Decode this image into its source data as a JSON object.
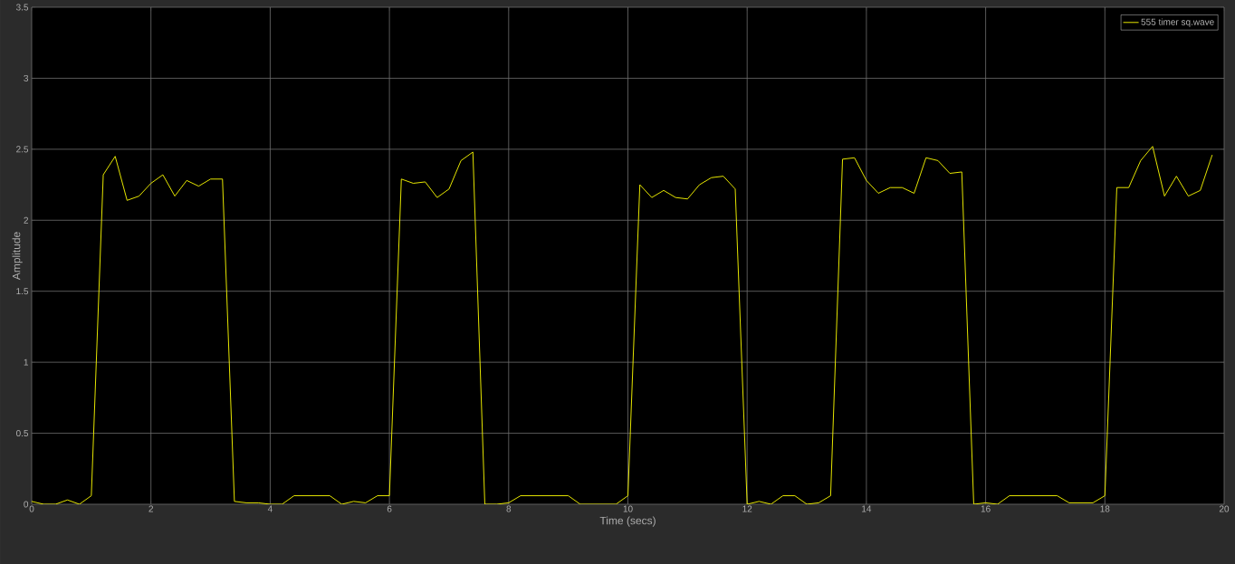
{
  "chart_data": {
    "type": "line",
    "xlabel": "Time (secs)",
    "ylabel": "Amplitude",
    "x": [
      0,
      0.2,
      0.4,
      0.6,
      0.8,
      1.0,
      1.2,
      1.4,
      1.6,
      1.8,
      2.0,
      2.2,
      2.4,
      2.6,
      2.8,
      3.0,
      3.2,
      3.4,
      3.6,
      3.8,
      4.0,
      4.2,
      4.4,
      4.6,
      4.8,
      5.0,
      5.2,
      5.4,
      5.6,
      5.8,
      6.0,
      6.2,
      6.4,
      6.6,
      6.8,
      7.0,
      7.2,
      7.4,
      7.6,
      7.8,
      8.0,
      8.2,
      8.4,
      8.6,
      8.8,
      9.0,
      9.2,
      9.4,
      9.6,
      9.8,
      10.0,
      10.2,
      10.4,
      10.6,
      10.8,
      11.0,
      11.2,
      11.4,
      11.6,
      11.8,
      12.0,
      12.2,
      12.4,
      12.6,
      12.8,
      13.0,
      13.2,
      13.4,
      13.6,
      13.8,
      14.0,
      14.2,
      14.4,
      14.6,
      14.8,
      15.0,
      15.2,
      15.4,
      15.6,
      15.8,
      16.0,
      16.2,
      16.4,
      16.6,
      16.8,
      17.0,
      17.2,
      17.4,
      17.6,
      17.8,
      18.0,
      18.2,
      18.4,
      18.6,
      18.8,
      19.0,
      19.2,
      19.4,
      19.6,
      19.8
    ],
    "series": [
      {
        "name": "555 timer sq.wave",
        "color": "#ffff00",
        "values": [
          0.02,
          0.0,
          0.0,
          0.03,
          0.0,
          0.06,
          2.32,
          2.45,
          2.14,
          2.17,
          2.26,
          2.32,
          2.17,
          2.28,
          2.24,
          2.29,
          2.29,
          0.02,
          0.01,
          0.01,
          0.0,
          0.0,
          0.06,
          0.06,
          0.06,
          0.06,
          0.0,
          0.02,
          0.01,
          0.06,
          0.06,
          2.29,
          2.26,
          2.27,
          2.16,
          2.22,
          2.42,
          2.48,
          0.0,
          0.0,
          0.01,
          0.06,
          0.06,
          0.06,
          0.06,
          0.06,
          0.0,
          0.0,
          0.0,
          0.0,
          0.06,
          2.25,
          2.16,
          2.21,
          2.16,
          2.15,
          2.25,
          2.3,
          2.31,
          2.22,
          0.0,
          0.02,
          0.0,
          0.06,
          0.06,
          0.0,
          0.01,
          0.06,
          2.43,
          2.44,
          2.28,
          2.19,
          2.23,
          2.23,
          2.19,
          2.44,
          2.42,
          2.33,
          2.34,
          0.0,
          0.01,
          0.0,
          0.06,
          0.06,
          0.06,
          0.06,
          0.06,
          0.01,
          0.01,
          0.01,
          0.06,
          2.23,
          2.23,
          2.42,
          2.52,
          2.17,
          2.31,
          2.17,
          2.21,
          2.46
        ]
      }
    ],
    "xlim": [
      0,
      20
    ],
    "ylim": [
      0,
      3.5
    ],
    "xticks": [
      0,
      2,
      4,
      6,
      8,
      10,
      12,
      14,
      16,
      18,
      20
    ],
    "yticks": [
      0,
      0.5,
      1,
      1.5,
      2,
      2.5,
      3,
      3.5
    ],
    "grid": true,
    "legend": "top right",
    "marker": "none",
    "line_style": "solid"
  }
}
